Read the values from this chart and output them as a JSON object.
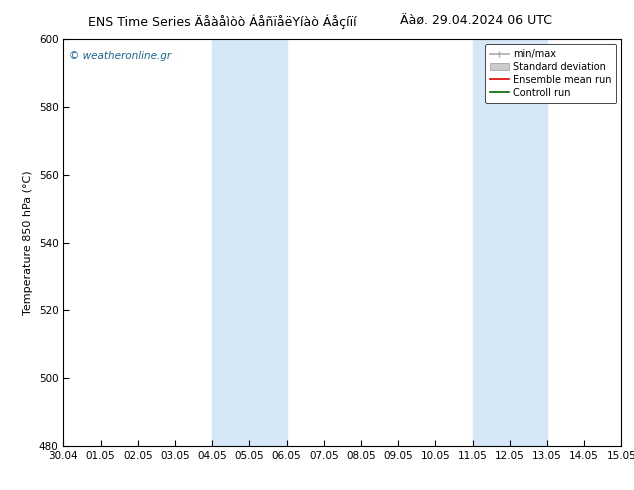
{
  "title_left": "ENS Time Series Äåàåìòò ÁåñïåëYíàò Áåçíïí",
  "title_right": "Äàø. 29.04.2024 06 UTC",
  "ylabel": "Temperature 850 hPa (°C)",
  "xlabel_ticks": [
    "30.04",
    "01.05",
    "02.05",
    "03.05",
    "04.05",
    "05.05",
    "06.05",
    "07.05",
    "08.05",
    "09.05",
    "10.05",
    "11.05",
    "12.05",
    "13.05",
    "14.05",
    "15.05"
  ],
  "ylim": [
    480,
    600
  ],
  "yticks": [
    480,
    500,
    520,
    540,
    560,
    580,
    600
  ],
  "shaded_regions": [
    {
      "xstart": 4,
      "xend": 6,
      "color": "#d6e8f7"
    },
    {
      "xstart": 11,
      "xend": 13,
      "color": "#d6e8f7"
    }
  ],
  "watermark": "© weatheronline.gr",
  "watermark_color": "#1a6699",
  "bg_color": "#ffffff",
  "plot_bg_color": "#ffffff",
  "tick_label_fontsize": 7.5,
  "title_fontsize": 9,
  "ylabel_fontsize": 8,
  "legend_fontsize": 7,
  "minmax_color": "#aaaaaa",
  "std_color": "#cccccc",
  "ens_color": "#dd0000",
  "ctrl_color": "#006600"
}
